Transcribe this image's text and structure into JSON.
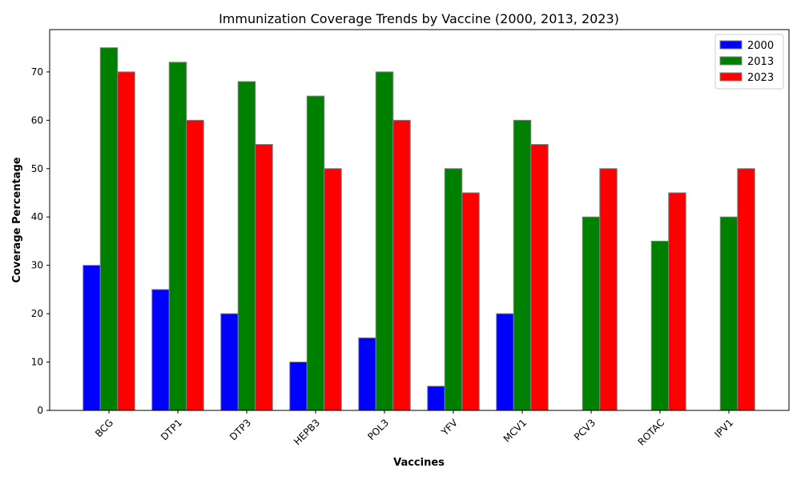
{
  "chart_data": {
    "type": "bar",
    "title": "Immunization Coverage Trends by Vaccine (2000, 2013, 2023)",
    "xlabel": "Vaccines",
    "ylabel": "Coverage Percentage",
    "categories": [
      "BCG",
      "DTP1",
      "DTP3",
      "HEPB3",
      "POL3",
      "YFV",
      "MCV1",
      "PCV3",
      "ROTAC",
      "IPV1"
    ],
    "series": [
      {
        "name": "2000",
        "color": "#0000ff",
        "values": [
          30,
          25,
          20,
          10,
          15,
          5,
          20,
          0,
          0,
          0
        ]
      },
      {
        "name": "2013",
        "color": "#008000",
        "values": [
          75,
          72,
          68,
          65,
          70,
          50,
          60,
          40,
          35,
          40
        ]
      },
      {
        "name": "2023",
        "color": "#ff0000",
        "values": [
          70,
          60,
          55,
          50,
          60,
          45,
          55,
          50,
          45,
          50
        ]
      }
    ],
    "ylim": [
      0,
      78.75
    ],
    "yticks": [
      0,
      10,
      20,
      30,
      40,
      50,
      60,
      70
    ],
    "grid": false,
    "legend_position": "top-right"
  }
}
